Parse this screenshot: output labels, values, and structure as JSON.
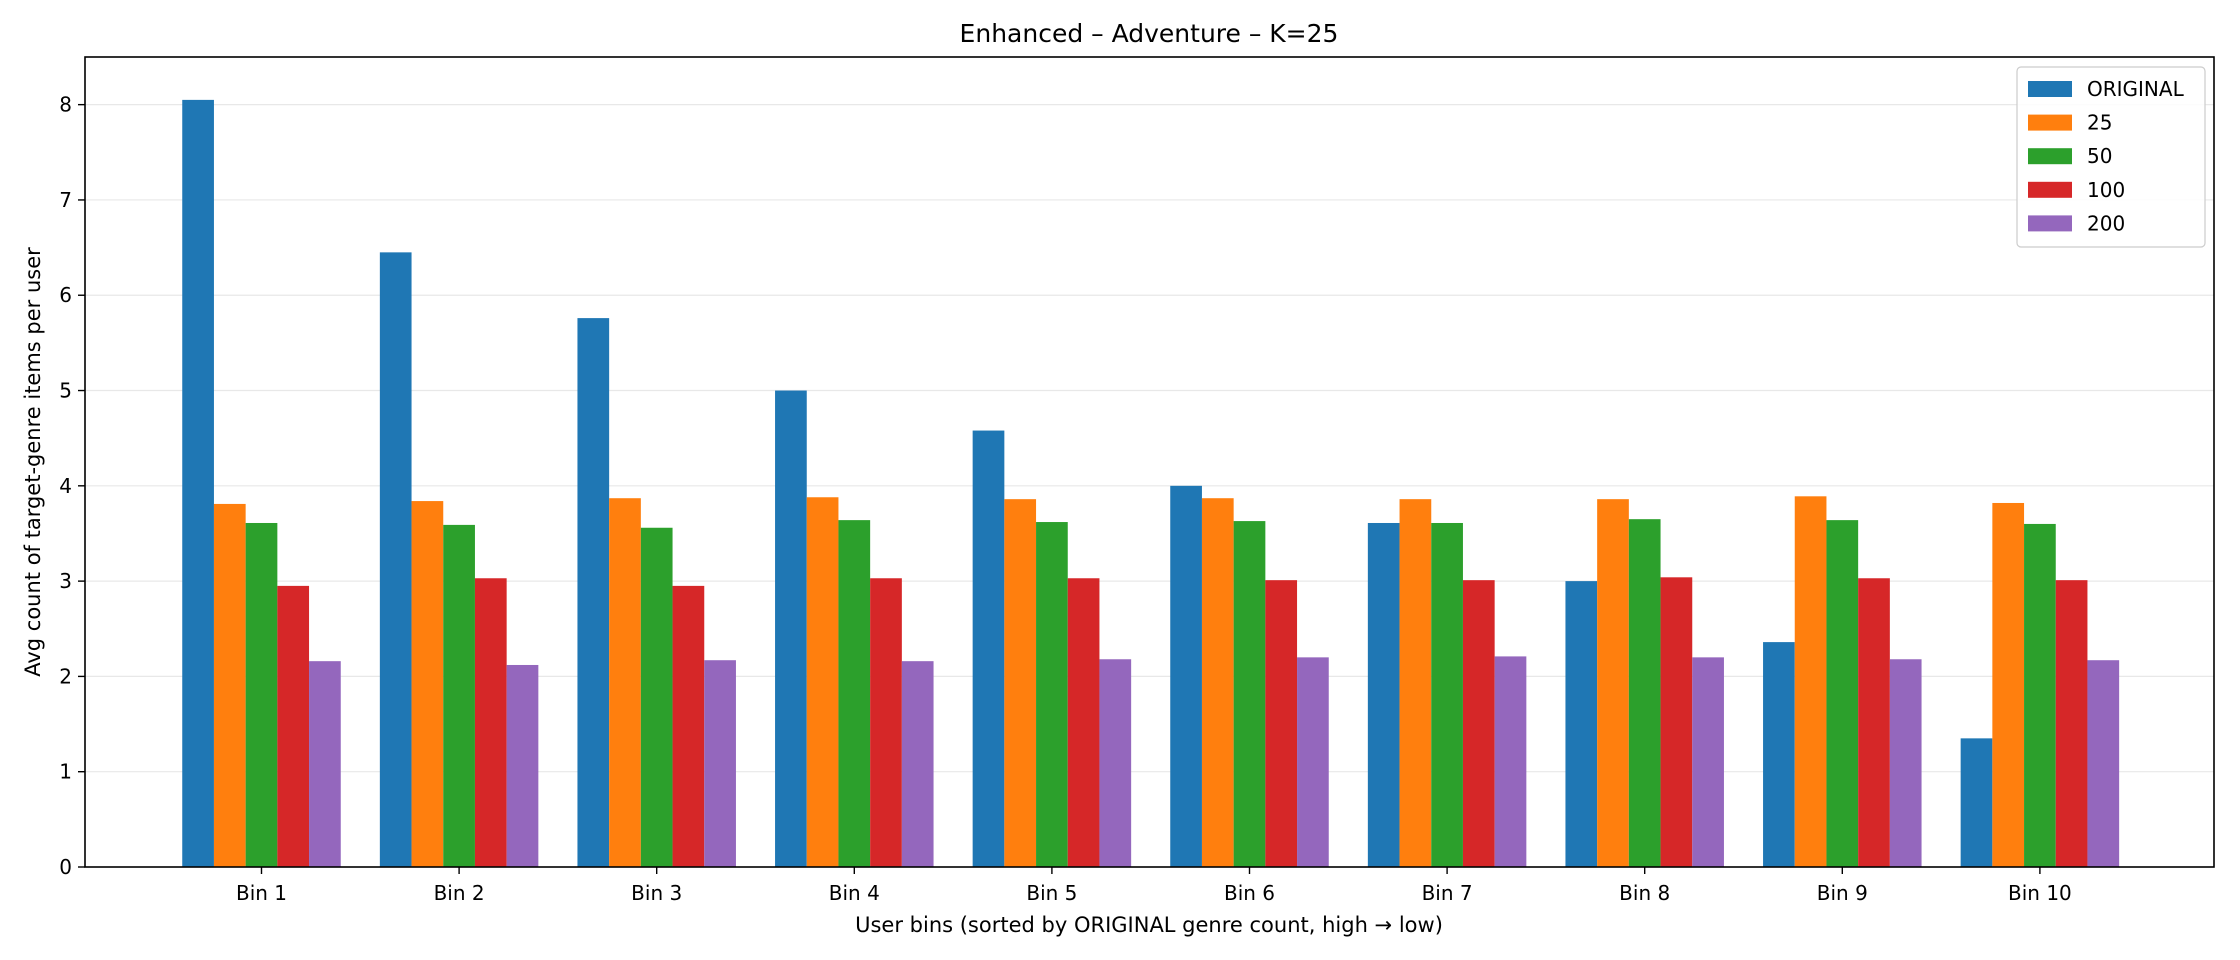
{
  "chart_data": {
    "type": "bar",
    "title": "Enhanced – Adventure – K=25",
    "xlabel": "User bins (sorted by ORIGINAL genre count, high → low)",
    "ylabel": "Avg count of target-genre items per user",
    "categories": [
      "Bin 1",
      "Bin 2",
      "Bin 3",
      "Bin 4",
      "Bin 5",
      "Bin 6",
      "Bin 7",
      "Bin 8",
      "Bin 9",
      "Bin 10"
    ],
    "ylim": [
      0,
      8.5
    ],
    "yticks": [
      0,
      1,
      2,
      3,
      4,
      5,
      6,
      7,
      8
    ],
    "grid": "horizontal",
    "legend_position": "top-right",
    "series": [
      {
        "name": "ORIGINAL",
        "color": "#1f77b4",
        "values": [
          8.05,
          6.45,
          5.76,
          5.0,
          4.58,
          4.0,
          3.61,
          3.0,
          2.36,
          1.35
        ]
      },
      {
        "name": "25",
        "color": "#ff7f0e",
        "values": [
          3.81,
          3.84,
          3.87,
          3.88,
          3.86,
          3.87,
          3.86,
          3.86,
          3.89,
          3.82
        ]
      },
      {
        "name": "50",
        "color": "#2ca02c",
        "values": [
          3.61,
          3.59,
          3.56,
          3.64,
          3.62,
          3.63,
          3.61,
          3.65,
          3.64,
          3.6
        ]
      },
      {
        "name": "100",
        "color": "#d62728",
        "values": [
          2.95,
          3.03,
          2.95,
          3.03,
          3.03,
          3.01,
          3.01,
          3.04,
          3.03,
          3.01
        ]
      },
      {
        "name": "200",
        "color": "#9467bd",
        "values": [
          2.16,
          2.12,
          2.17,
          2.16,
          2.18,
          2.2,
          2.21,
          2.2,
          2.18,
          2.17
        ]
      }
    ]
  }
}
